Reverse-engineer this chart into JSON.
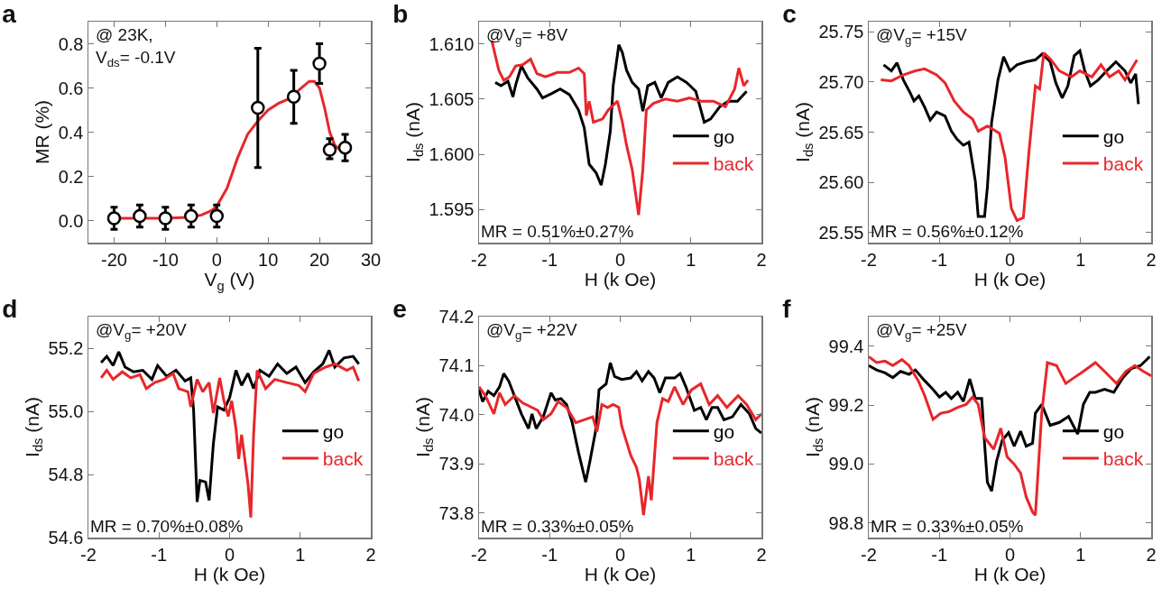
{
  "chart_data": [
    {
      "type": "scatter",
      "title": "a",
      "xlabel": "V$_{g}$ (V)",
      "ylabel": "MR (%)",
      "annotations": [
        "@ 23K,\nV$_{ds}$= -0.1V"
      ],
      "grid": false,
      "legend": false,
      "xlim": [
        -25,
        30
      ],
      "xticks": [
        -20,
        -10,
        0,
        10,
        20,
        30
      ],
      "ylim": [
        -0.1,
        0.9
      ],
      "yticks": [
        {
          "value": 0,
          "label": "0.0"
        },
        0.2,
        0.4,
        0.6,
        0.8
      ],
      "series": [
        {
          "type": "line",
          "color": "#e8262a",
          "x": [
            -20,
            -10,
            -5,
            -3,
            -1,
            0,
            2,
            4,
            6,
            8,
            10,
            12,
            14,
            16,
            18,
            19,
            20,
            21,
            22,
            23,
            24
          ],
          "values": [
            0.01,
            0.01,
            0.015,
            0.025,
            0.045,
            0.065,
            0.146,
            0.28,
            0.39,
            0.45,
            0.5,
            0.53,
            0.55,
            0.59,
            0.63,
            0.63,
            0.6,
            0.51,
            0.4,
            0.34,
            0.32
          ]
        },
        {
          "color": "#000000",
          "marker": "circle",
          "x": [
            -20,
            -15,
            -10,
            -5,
            0,
            8,
            15,
            20,
            22,
            25
          ],
          "values": [
            0.01,
            0.02,
            0.01,
            0.02,
            0.02,
            0.51,
            0.56,
            0.71,
            0.32,
            0.33
          ],
          "errors": [
            [
              -0.04,
              0.06
            ],
            [
              -0.03,
              0.07
            ],
            [
              -0.04,
              0.06
            ],
            [
              -0.03,
              0.07
            ],
            [
              -0.03,
              0.07
            ],
            [
              0.24,
              0.78
            ],
            [
              0.44,
              0.68
            ],
            [
              0.62,
              0.8
            ],
            [
              0.28,
              0.37
            ],
            [
              0.27,
              0.39
            ]
          ]
        }
      ]
    },
    {
      "type": "line",
      "title": "b",
      "xlabel": "H (k Oe)",
      "ylabel": "I$_{ds}$ (nA)",
      "annotations": [
        "@V$_{g}$= +8V",
        "MR = 0.51%±0.27%"
      ],
      "grid": false,
      "legend": "right",
      "xlim": [
        -2,
        2
      ],
      "xticks": [
        -2,
        -1,
        0,
        1,
        2
      ],
      "ylim": [
        1.592,
        1.612
      ],
      "yticks": [
        1.595,
        {
          "value": 1.6,
          "label": "1.600"
        },
        1.605,
        {
          "value": 1.61,
          "label": "1.610"
        }
      ],
      "series": [
        {
          "name": "go",
          "color": "#000000",
          "x": [
            -1.77,
            -1.69,
            -1.59,
            -1.52,
            -1.48,
            -1.4,
            -1.31,
            -1.18,
            -1.1,
            -0.97,
            -0.85,
            -0.72,
            -0.59,
            -0.51,
            -0.44,
            -0.34,
            -0.27,
            -0.21,
            -0.14,
            -0.1,
            -0.02,
            0.03,
            0.09,
            0.17,
            0.26,
            0.32,
            0.39,
            0.49,
            0.58,
            0.68,
            0.81,
            0.94,
            1.07,
            1.19,
            1.28,
            1.41,
            1.53,
            1.66,
            1.79
          ],
          "values": [
            1.6065,
            1.6062,
            1.6066,
            1.6052,
            1.6063,
            1.608,
            1.6069,
            1.6059,
            1.6051,
            1.6055,
            1.6059,
            1.6054,
            1.604,
            1.6024,
            1.5991,
            1.5983,
            1.5972,
            1.5991,
            1.6021,
            1.6062,
            1.6099,
            1.6092,
            1.6076,
            1.6065,
            1.6059,
            1.6039,
            1.6062,
            1.6065,
            1.6051,
            1.6065,
            1.607,
            1.6065,
            1.6057,
            1.6029,
            1.6032,
            1.6043,
            1.6048,
            1.6048,
            1.6057
          ]
        },
        {
          "name": "back",
          "color": "#e8262a",
          "x": [
            -1.82,
            -1.72,
            -1.65,
            -1.57,
            -1.48,
            -1.38,
            -1.27,
            -1.18,
            -1.06,
            -0.89,
            -0.72,
            -0.59,
            -0.51,
            -0.48,
            -0.44,
            -0.38,
            -0.25,
            -0.17,
            -0.04,
            0.03,
            0.09,
            0.17,
            0.26,
            0.32,
            0.37,
            0.47,
            0.64,
            0.81,
            0.98,
            1.15,
            1.32,
            1.49,
            1.62,
            1.68,
            1.75,
            1.81
          ],
          "values": [
            1.6103,
            1.6076,
            1.6067,
            1.607,
            1.608,
            1.6081,
            1.6086,
            1.6073,
            1.607,
            1.6074,
            1.6074,
            1.6078,
            1.6073,
            1.6035,
            1.6048,
            1.6029,
            1.6032,
            1.604,
            1.6048,
            1.6029,
            1.6008,
            1.5986,
            1.5945,
            1.5986,
            1.604,
            1.6046,
            1.605,
            1.6048,
            1.6051,
            1.6048,
            1.6048,
            1.6043,
            1.6059,
            1.6078,
            1.6062,
            1.6067
          ]
        }
      ]
    },
    {
      "type": "line",
      "title": "c",
      "xlabel": "H (k Oe)",
      "ylabel": "I$_{ds}$ (nA)",
      "annotations": [
        "@V$_{g}$= +15V",
        "MR = 0.56%±0.12%"
      ],
      "grid": false,
      "legend": "right",
      "xlim": [
        -2,
        2
      ],
      "xticks": [
        -2,
        -1,
        0,
        1,
        2
      ],
      "ylim": [
        25.54,
        25.76
      ],
      "yticks": [
        25.55,
        {
          "value": 25.6,
          "label": "25.60"
        },
        25.65,
        {
          "value": 25.7,
          "label": "25.70"
        },
        25.75
      ],
      "series": [
        {
          "name": "go",
          "color": "#000000",
          "x": [
            -1.79,
            -1.68,
            -1.6,
            -1.51,
            -1.42,
            -1.36,
            -1.29,
            -1.21,
            -1.13,
            -1.04,
            -0.92,
            -0.83,
            -0.75,
            -0.66,
            -0.58,
            -0.49,
            -0.45,
            -0.36,
            -0.32,
            -0.26,
            -0.22,
            -0.17,
            -0.09,
            0,
            0.1,
            0.23,
            0.36,
            0.46,
            0.57,
            0.65,
            0.74,
            0.82,
            0.91,
            0.99,
            1.06,
            1.14,
            1.25,
            1.37,
            1.5,
            1.63,
            1.71,
            1.78,
            1.82
          ],
          "values": [
            25.717,
            25.711,
            25.719,
            25.702,
            25.69,
            25.681,
            25.686,
            25.675,
            25.662,
            25.67,
            25.666,
            25.651,
            25.643,
            25.637,
            25.64,
            25.601,
            25.566,
            25.566,
            25.595,
            25.66,
            25.678,
            25.702,
            25.725,
            25.711,
            25.717,
            25.72,
            25.722,
            25.728,
            25.72,
            25.699,
            25.684,
            25.696,
            25.726,
            25.731,
            25.711,
            25.696,
            25.702,
            25.711,
            25.72,
            25.711,
            25.699,
            25.708,
            25.678
          ]
        },
        {
          "name": "back",
          "color": "#e8262a",
          "x": [
            -1.83,
            -1.68,
            -1.51,
            -1.34,
            -1.21,
            -1.04,
            -0.92,
            -0.79,
            -0.66,
            -0.53,
            -0.45,
            -0.32,
            -0.15,
            -0.07,
            0.02,
            0.1,
            0.19,
            0.27,
            0.36,
            0.42,
            0.48,
            0.57,
            0.7,
            0.87,
            0.99,
            1.16,
            1.29,
            1.41,
            1.54,
            1.63,
            1.8
          ],
          "values": [
            25.702,
            25.701,
            25.707,
            25.711,
            25.713,
            25.707,
            25.699,
            25.681,
            25.67,
            25.663,
            25.651,
            25.656,
            25.649,
            25.625,
            25.574,
            25.562,
            25.565,
            25.631,
            25.696,
            25.693,
            25.729,
            25.723,
            25.711,
            25.705,
            25.711,
            25.705,
            25.717,
            25.705,
            25.711,
            25.702,
            25.722
          ]
        }
      ]
    },
    {
      "type": "line",
      "title": "d",
      "xlabel": "H (k Oe)",
      "ylabel": "I$_{ds}$ (nA)",
      "annotations": [
        "@V$_{g}$= +20V",
        "MR = 0.70%±0.08%"
      ],
      "grid": false,
      "legend": "right",
      "xlim": [
        -2,
        2
      ],
      "xticks": [
        -2,
        -1,
        0,
        1,
        2
      ],
      "ylim": [
        54.6,
        55.3
      ],
      "yticks": [
        54.6,
        54.8,
        {
          "value": 55,
          "label": "55.0"
        },
        55.2
      ],
      "series": [
        {
          "name": "go",
          "color": "#000000",
          "x": [
            -1.82,
            -1.74,
            -1.65,
            -1.57,
            -1.48,
            -1.36,
            -1.23,
            -1.1,
            -1.02,
            -0.89,
            -0.76,
            -0.63,
            -0.55,
            -0.51,
            -0.46,
            -0.42,
            -0.34,
            -0.29,
            -0.23,
            -0.17,
            -0.08,
            0,
            0.09,
            0.17,
            0.26,
            0.34,
            0.43,
            0.56,
            0.68,
            0.81,
            0.94,
            1.07,
            1.19,
            1.32,
            1.41,
            1.49,
            1.62,
            1.75,
            1.83
          ],
          "values": [
            55.154,
            55.174,
            55.145,
            55.188,
            55.14,
            55.125,
            55.13,
            55.101,
            55.145,
            55.111,
            55.13,
            55.096,
            55.106,
            55.004,
            54.713,
            54.781,
            54.776,
            54.718,
            54.897,
            55.014,
            55.004,
            55.043,
            55.13,
            55.082,
            55.12,
            55.072,
            55.13,
            55.111,
            55.15,
            55.12,
            55.14,
            55.091,
            55.125,
            55.15,
            55.193,
            55.14,
            55.169,
            55.174,
            55.15
          ]
        },
        {
          "name": "back",
          "color": "#e8262a",
          "x": [
            -1.82,
            -1.74,
            -1.65,
            -1.52,
            -1.4,
            -1.27,
            -1.18,
            -1.06,
            -0.93,
            -0.8,
            -0.72,
            -0.59,
            -0.55,
            -0.46,
            -0.38,
            -0.29,
            -0.23,
            -0.14,
            -0.08,
            -0.02,
            0.03,
            0.09,
            0.13,
            0.17,
            0.26,
            0.3,
            0.34,
            0.39,
            0.51,
            0.64,
            0.81,
            0.98,
            1.07,
            1.19,
            1.36,
            1.49,
            1.66,
            1.75,
            1.83
          ],
          "values": [
            55.106,
            55.13,
            55.101,
            55.125,
            55.106,
            55.116,
            55.072,
            55.091,
            55.101,
            55.12,
            55.072,
            55.062,
            55.014,
            55.101,
            55.062,
            55.091,
            54.994,
            55.106,
            55.033,
            54.984,
            55.033,
            54.946,
            54.849,
            54.926,
            54.771,
            54.664,
            54.926,
            55.13,
            55.072,
            55.101,
            55.091,
            55.082,
            55.062,
            55.12,
            55.14,
            55.15,
            55.13,
            55.14,
            55.096
          ]
        }
      ]
    },
    {
      "type": "line",
      "title": "e",
      "xlabel": "H (k Oe)",
      "ylabel": "I$_{ds}$ (nA)",
      "annotations": [
        "@V$_{g}$= +22V",
        "MR = 0.33%±0.05%"
      ],
      "grid": false,
      "legend": "right",
      "xlim": [
        -2,
        2
      ],
      "xticks": [
        -2,
        -1,
        0,
        1,
        2
      ],
      "ylim": [
        73.75,
        74.2
      ],
      "yticks": [
        73.8,
        73.9,
        {
          "value": 74,
          "label": "74.0"
        },
        74.1,
        74.2
      ],
      "series": [
        {
          "name": "go",
          "color": "#000000",
          "x": [
            -2,
            -1.95,
            -1.87,
            -1.79,
            -1.71,
            -1.65,
            -1.58,
            -1.5,
            -1.4,
            -1.3,
            -1.25,
            -1.19,
            -1.09,
            -0.98,
            -0.92,
            -0.84,
            -0.76,
            -0.68,
            -0.59,
            -0.49,
            -0.43,
            -0.35,
            -0.3,
            -0.2,
            -0.14,
            -0.08,
            0.02,
            0.15,
            0.23,
            0.31,
            0.4,
            0.48,
            0.56,
            0.64,
            0.77,
            0.85,
            0.93,
            1.05,
            1.14,
            1.22,
            1.3,
            1.38,
            1.47,
            1.59,
            1.71,
            1.83,
            1.92,
            2
          ],
          "values": [
            74.051,
            74.027,
            74.048,
            74.039,
            74.057,
            74.084,
            74.069,
            74.039,
            74.002,
            73.972,
            74.002,
            73.972,
            73.996,
            74.045,
            74.03,
            74.033,
            74.021,
            73.984,
            73.923,
            73.863,
            73.905,
            73.966,
            74.051,
            74.063,
            74.106,
            74.078,
            74.072,
            74.075,
            74.088,
            74.069,
            74.088,
            74.075,
            74.045,
            74.075,
            74.075,
            74.084,
            74.057,
            74.009,
            74.015,
            73.99,
            74.015,
            74.015,
            73.99,
            73.996,
            74.021,
            74.002,
            73.972,
            73.963
          ]
        },
        {
          "name": "back",
          "color": "#e8262a",
          "x": [
            -2,
            -1.91,
            -1.79,
            -1.71,
            -1.63,
            -1.5,
            -1.38,
            -1.25,
            -1.17,
            -1.09,
            -0.98,
            -0.88,
            -0.76,
            -0.63,
            -0.51,
            -0.39,
            -0.33,
            -0.26,
            -0.18,
            -0.1,
            -0.02,
            0.02,
            0.07,
            0.15,
            0.23,
            0.27,
            0.33,
            0.4,
            0.44,
            0.52,
            0.6,
            0.68,
            0.77,
            0.89,
            1.01,
            1.14,
            1.26,
            1.38,
            1.51,
            1.67,
            1.79,
            1.92,
            2
          ],
          "values": [
            74.057,
            74.039,
            74.002,
            74.045,
            74.021,
            74.039,
            74.024,
            74.015,
            74.009,
            73.99,
            74.002,
            74.027,
            74.015,
            73.984,
            73.99,
            73.996,
            73.966,
            74.021,
            74.015,
            74.021,
            74.015,
            73.978,
            73.954,
            73.917,
            73.893,
            73.869,
            73.796,
            73.875,
            73.826,
            73.984,
            74.033,
            74.027,
            74.057,
            74.021,
            74.051,
            74.063,
            74.021,
            74.039,
            74.015,
            74.039,
            74.021,
            73.99,
            74.002
          ]
        }
      ]
    },
    {
      "type": "line",
      "title": "f",
      "xlabel": "H (k Oe)",
      "ylabel": "I$_{ds}$ (nA)",
      "annotations": [
        "@V$_{g}$= +25V",
        "MR = 0.33%±0.05%"
      ],
      "grid": false,
      "legend": "right",
      "xlim": [
        -2,
        2
      ],
      "xticks": [
        -2,
        -1,
        0,
        1,
        2
      ],
      "ylim": [
        98.75,
        99.5
      ],
      "yticks": [
        98.8,
        {
          "value": 99,
          "label": "99.0"
        },
        99.2,
        99.4
      ],
      "series": [
        {
          "name": "go",
          "color": "#000000",
          "x": [
            -2,
            -1.89,
            -1.77,
            -1.66,
            -1.55,
            -1.43,
            -1.34,
            -1.21,
            -1.09,
            -1,
            -0.91,
            -0.83,
            -0.74,
            -0.66,
            -0.57,
            -0.49,
            -0.4,
            -0.36,
            -0.32,
            -0.26,
            -0.19,
            -0.11,
            -0.02,
            0.06,
            0.15,
            0.23,
            0.32,
            0.36,
            0.45,
            0.57,
            0.7,
            0.83,
            0.96,
            1.04,
            1.13,
            1.21,
            1.34,
            1.47,
            1.6,
            1.72,
            1.85,
            1.98
          ],
          "values": [
            99.334,
            99.319,
            99.309,
            99.293,
            99.314,
            99.304,
            99.319,
            99.283,
            99.253,
            99.227,
            99.243,
            99.222,
            99.243,
            99.212,
            99.288,
            99.222,
            99.222,
            99.07,
            98.938,
            98.908,
            99.009,
            99.08,
            99.106,
            99.06,
            99.111,
            99.06,
            99.07,
            99.172,
            99.202,
            99.131,
            99.141,
            99.161,
            99.101,
            99.202,
            99.243,
            99.243,
            99.253,
            99.243,
            99.293,
            99.324,
            99.334,
            99.364
          ]
        },
        {
          "name": "back",
          "color": "#e8262a",
          "x": [
            -2,
            -1.89,
            -1.77,
            -1.66,
            -1.53,
            -1.43,
            -1.3,
            -1.21,
            -1.09,
            -0.98,
            -0.87,
            -0.74,
            -0.62,
            -0.53,
            -0.45,
            -0.36,
            -0.23,
            -0.13,
            -0.04,
            0.06,
            0.15,
            0.23,
            0.32,
            0.36,
            0.45,
            0.53,
            0.66,
            0.79,
            0.91,
            1.04,
            1.21,
            1.34,
            1.51,
            1.64,
            1.77,
            1.89,
            2
          ],
          "values": [
            99.364,
            99.344,
            99.349,
            99.334,
            99.354,
            99.334,
            99.283,
            99.233,
            99.151,
            99.172,
            99.177,
            99.192,
            99.202,
            99.227,
            99.202,
            99.09,
            99.05,
            99.121,
            99.024,
            98.999,
            98.969,
            98.888,
            98.837,
            98.826,
            99.172,
            99.344,
            99.334,
            99.273,
            99.293,
            99.314,
            99.344,
            99.314,
            99.273,
            99.314,
            99.334,
            99.314,
            99.299
          ]
        }
      ]
    }
  ]
}
